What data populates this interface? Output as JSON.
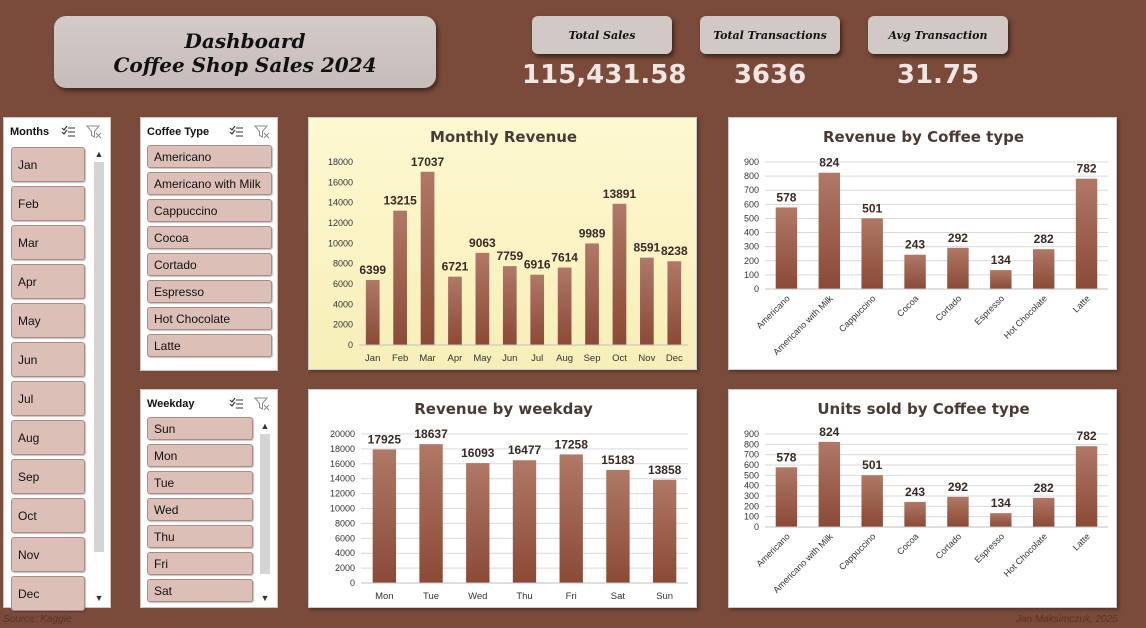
{
  "header": {
    "line1": "Dashboard",
    "line2": "Coffee Shop Sales 2024"
  },
  "kpis": [
    {
      "label": "Total Sales",
      "value": "115,431.58"
    },
    {
      "label": "Total Transactions",
      "value": "3636"
    },
    {
      "label": "Avg Transaction",
      "value": "31.75"
    }
  ],
  "slicers": {
    "months": {
      "title": "Months",
      "items": [
        "Jan",
        "Feb",
        "Mar",
        "Apr",
        "May",
        "Jun",
        "Jul",
        "Aug",
        "Sep",
        "Oct",
        "Nov",
        "Dec"
      ]
    },
    "coffee": {
      "title": "Coffee Type",
      "items": [
        "Americano",
        "Americano with Milk",
        "Cappuccino",
        "Cocoa",
        "Cortado",
        "Espresso",
        "Hot Chocolate",
        "Latte"
      ]
    },
    "weekday": {
      "title": "Weekday",
      "items": [
        "Sun",
        "Mon",
        "Tue",
        "Wed",
        "Thu",
        "Fri",
        "Sat"
      ]
    }
  },
  "icons": {
    "multiselect": "multi-select-icon",
    "clear_filter": "clear-filter-icon",
    "scroll_up": "chevron-up-icon",
    "scroll_down": "chevron-down-icon"
  },
  "colors": {
    "bar_top": "#b07866",
    "bar_bottom": "#8a4a36",
    "background": "#7a4a3a",
    "slicer_item": "#dcc0b8",
    "monthly_bg": "#fdf8d2"
  },
  "chart_data": [
    {
      "id": "monthly",
      "type": "bar",
      "title": "Monthly Revenue",
      "categories": [
        "Jan",
        "Feb",
        "Mar",
        "Apr",
        "May",
        "Jun",
        "Jul",
        "Aug",
        "Sep",
        "Oct",
        "Nov",
        "Dec"
      ],
      "values": [
        6399,
        13215,
        17037,
        6721,
        9063,
        7759,
        6916,
        7614,
        9989,
        13891,
        8591,
        8238
      ],
      "ylim": [
        0,
        18000
      ],
      "yticks": [
        0,
        2000,
        4000,
        6000,
        8000,
        10000,
        12000,
        14000,
        16000,
        18000
      ],
      "grid": false
    },
    {
      "id": "rev_coffee",
      "type": "bar",
      "title": "Revenue by Coffee type",
      "categories": [
        "Americano",
        "Americano with Milk",
        "Cappuccino",
        "Cocoa",
        "Cortado",
        "Espresso",
        "Hot Chocolate",
        "Latte"
      ],
      "values": [
        578,
        824,
        501,
        243,
        292,
        134,
        282,
        782
      ],
      "ylim": [
        0,
        900
      ],
      "yticks": [
        0,
        100,
        200,
        300,
        400,
        500,
        600,
        700,
        800,
        900
      ],
      "grid": true
    },
    {
      "id": "weekday",
      "type": "bar",
      "title": "Revenue by weekday",
      "categories": [
        "Mon",
        "Tue",
        "Wed",
        "Thu",
        "Fri",
        "Sat",
        "Sun"
      ],
      "values": [
        17925,
        18637,
        16093,
        16477,
        17258,
        15183,
        13858
      ],
      "ylim": [
        0,
        20000
      ],
      "yticks": [
        0,
        2000,
        4000,
        6000,
        8000,
        10000,
        12000,
        14000,
        16000,
        18000,
        20000
      ],
      "grid": true
    },
    {
      "id": "units_coffee",
      "type": "bar",
      "title": "Units sold by Coffee type",
      "categories": [
        "Americano",
        "Americano with Milk",
        "Cappuccino",
        "Cocoa",
        "Cortado",
        "Espresso",
        "Hot Chocolate",
        "Latte"
      ],
      "values": [
        578,
        824,
        501,
        243,
        292,
        134,
        282,
        782
      ],
      "ylim": [
        0,
        900
      ],
      "yticks": [
        0,
        100,
        200,
        300,
        400,
        500,
        600,
        700,
        800,
        900
      ],
      "grid": true
    }
  ],
  "footer": {
    "source": "Source: Kaggle",
    "author": "Jan Maksimczuk, 2025"
  }
}
